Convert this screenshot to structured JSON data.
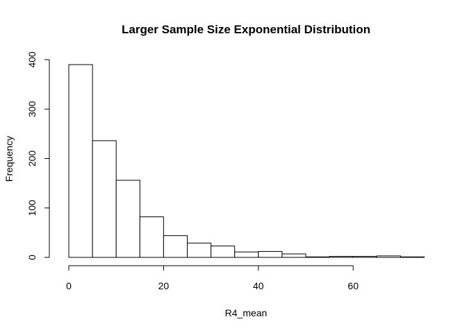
{
  "chart_data": {
    "type": "bar",
    "title": "Larger Sample Size Exponential Distribution",
    "xlabel": "R4_mean",
    "ylabel": "Frequency",
    "bin_width": 5,
    "bins": [
      {
        "start": 0,
        "end": 5,
        "count": 390
      },
      {
        "start": 5,
        "end": 10,
        "count": 236
      },
      {
        "start": 10,
        "end": 15,
        "count": 156
      },
      {
        "start": 15,
        "end": 20,
        "count": 82
      },
      {
        "start": 20,
        "end": 25,
        "count": 44
      },
      {
        "start": 25,
        "end": 30,
        "count": 29
      },
      {
        "start": 30,
        "end": 35,
        "count": 23
      },
      {
        "start": 35,
        "end": 40,
        "count": 11
      },
      {
        "start": 40,
        "end": 45,
        "count": 12
      },
      {
        "start": 45,
        "end": 50,
        "count": 7
      },
      {
        "start": 50,
        "end": 55,
        "count": 1
      },
      {
        "start": 55,
        "end": 60,
        "count": 2
      },
      {
        "start": 60,
        "end": 65,
        "count": 2
      },
      {
        "start": 65,
        "end": 70,
        "count": 3
      },
      {
        "start": 70,
        "end": 75,
        "count": 1
      }
    ],
    "x_ticks": [
      0,
      20,
      40,
      60
    ],
    "y_ticks": [
      0,
      100,
      200,
      300,
      400
    ],
    "xlim": [
      0,
      75
    ],
    "ylim": [
      0,
      400
    ],
    "grid": false,
    "legend": "none"
  }
}
